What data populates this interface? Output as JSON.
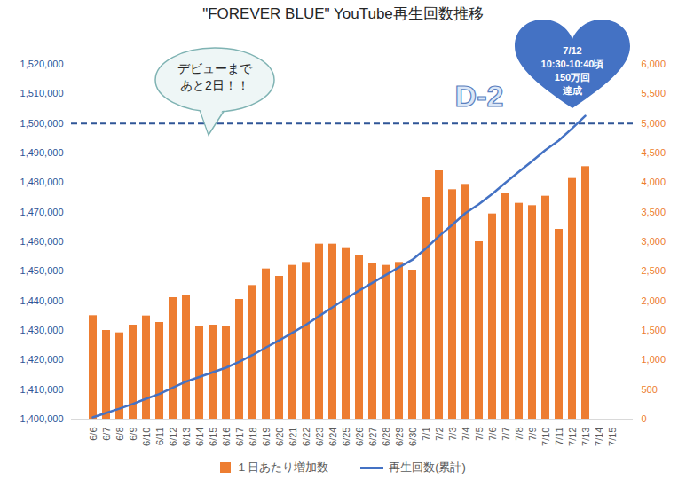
{
  "chart_data": {
    "type": "bar",
    "title": "\"FOREVER BLUE\" YouTube再生回数推移",
    "categories": [
      "6/6",
      "6/7",
      "6/8",
      "6/9",
      "6/10",
      "6/11",
      "6/12",
      "6/13",
      "6/14",
      "6/15",
      "6/16",
      "6/17",
      "6/18",
      "6/19",
      "6/20",
      "6/21",
      "6/22",
      "6/23",
      "6/24",
      "6/25",
      "6/26",
      "6/27",
      "6/28",
      "6/29",
      "6/30",
      "7/1",
      "7/2",
      "7/3",
      "7/4",
      "7/5",
      "7/6",
      "7/7",
      "7/8",
      "7/9",
      "7/10",
      "7/11",
      "7/12",
      "7/13",
      "7/14",
      "7/15"
    ],
    "series": [
      {
        "name": "１日あたり増加数",
        "type": "bar",
        "color": "#ED7D31",
        "axis": "y2",
        "values": [
          1750,
          1500,
          1460,
          1590,
          1745,
          1635,
          2055,
          2100,
          1560,
          1590,
          1560,
          2025,
          2260,
          2540,
          2415,
          2600,
          2650,
          2960,
          2960,
          2900,
          2770,
          2630,
          2600,
          2650,
          2520,
          3750,
          4200,
          3880,
          3970,
          3000,
          3470,
          3820,
          3650,
          3610,
          3770,
          3210,
          4070,
          4270,
          null,
          null
        ]
      },
      {
        "name": "再生回数(累計)",
        "type": "line",
        "color": "#4472C4",
        "values": [
          1400600,
          1402100,
          1403560,
          1405150,
          1406895,
          1408530,
          1410585,
          1412685,
          1414245,
          1415835,
          1417395,
          1419420,
          1421680,
          1424220,
          1426635,
          1429235,
          1431885,
          1434845,
          1437805,
          1440705,
          1443475,
          1446105,
          1448705,
          1451355,
          1453875,
          1457625,
          1461825,
          1465705,
          1469675,
          1472675,
          1476145,
          1479965,
          1483615,
          1487225,
          1490995,
          1494205,
          1498275,
          1502545,
          null,
          null
        ]
      }
    ],
    "ylim": [
      1400000,
      1520000
    ],
    "yticks": [
      {
        "value": 1400000,
        "label": "1,400,000"
      },
      {
        "value": 1410000,
        "label": "1,410,000"
      },
      {
        "value": 1420000,
        "label": "1,420,000"
      },
      {
        "value": 1430000,
        "label": "1,430,000"
      },
      {
        "value": 1440000,
        "label": "1,440,000"
      },
      {
        "value": 1450000,
        "label": "1,450,000"
      },
      {
        "value": 1460000,
        "label": "1,460,000"
      },
      {
        "value": 1470000,
        "label": "1,470,000"
      },
      {
        "value": 1480000,
        "label": "1,480,000"
      },
      {
        "value": 1490000,
        "label": "1,490,000"
      },
      {
        "value": 1500000,
        "label": "1,500,000"
      },
      {
        "value": 1510000,
        "label": "1,510,000"
      },
      {
        "value": 1520000,
        "label": "1,520,000"
      }
    ],
    "y2lim": [
      0,
      6000
    ],
    "y2ticks": [
      0,
      500,
      {
        "value": 1000,
        "label": "1,000"
      },
      {
        "value": 1500,
        "label": "1,500"
      },
      {
        "value": 2000,
        "label": "2,000"
      },
      {
        "value": 2500,
        "label": "2,500"
      },
      {
        "value": 3000,
        "label": "3,000"
      },
      {
        "value": 3500,
        "label": "3,500"
      },
      {
        "value": 4000,
        "label": "4,000"
      },
      {
        "value": 4500,
        "label": "4,500"
      },
      {
        "value": 5000,
        "label": "5,000"
      },
      {
        "value": 5500,
        "label": "5,500"
      },
      {
        "value": 6000,
        "label": "6,000"
      }
    ],
    "reference_line": {
      "value": 1500000,
      "line_style": "dashed",
      "color": "#2F5597"
    },
    "annotations": [
      "デビューまで あと2日！！",
      "D-2",
      "7/12 10:30-10:40頃 150万回 達成"
    ],
    "legend": "bottom",
    "grid": false
  }
}
